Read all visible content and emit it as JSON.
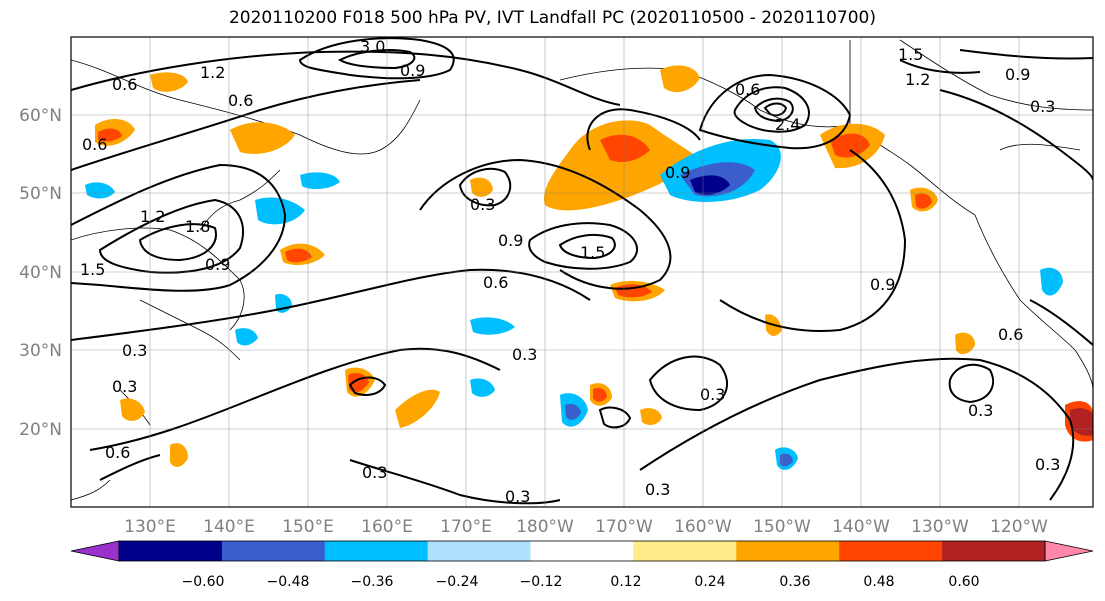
{
  "title": "2020110200 F018 500 hPa PV, IVT Landfall PC (2020110500 - 2020110700)",
  "map": {
    "lat_labels": [
      "60°N",
      "50°N",
      "40°N",
      "30°N",
      "20°N"
    ],
    "lon_labels": [
      "130°E",
      "140°E",
      "150°E",
      "160°E",
      "170°E",
      "180°W",
      "170°W",
      "160°W",
      "150°W",
      "140°W",
      "130°W",
      "120°W"
    ],
    "contour_labels": [
      "0.3",
      "0.6",
      "0.9",
      "1.2",
      "1.5",
      "1.8",
      "2.4",
      "3.0"
    ]
  },
  "colorbar": {
    "colors": [
      "#9932cc",
      "#00008b",
      "#3a5fcd",
      "#00bfff",
      "#b0e2ff",
      "#ffffff",
      "#ffec8b",
      "#ffa500",
      "#ff4500",
      "#b22222",
      "#ff88aa"
    ],
    "tick_labels": [
      "−0.60",
      "−0.48",
      "−0.36",
      "−0.24",
      "−0.12",
      "0.12",
      "0.24",
      "0.36",
      "0.48",
      "0.60"
    ]
  }
}
